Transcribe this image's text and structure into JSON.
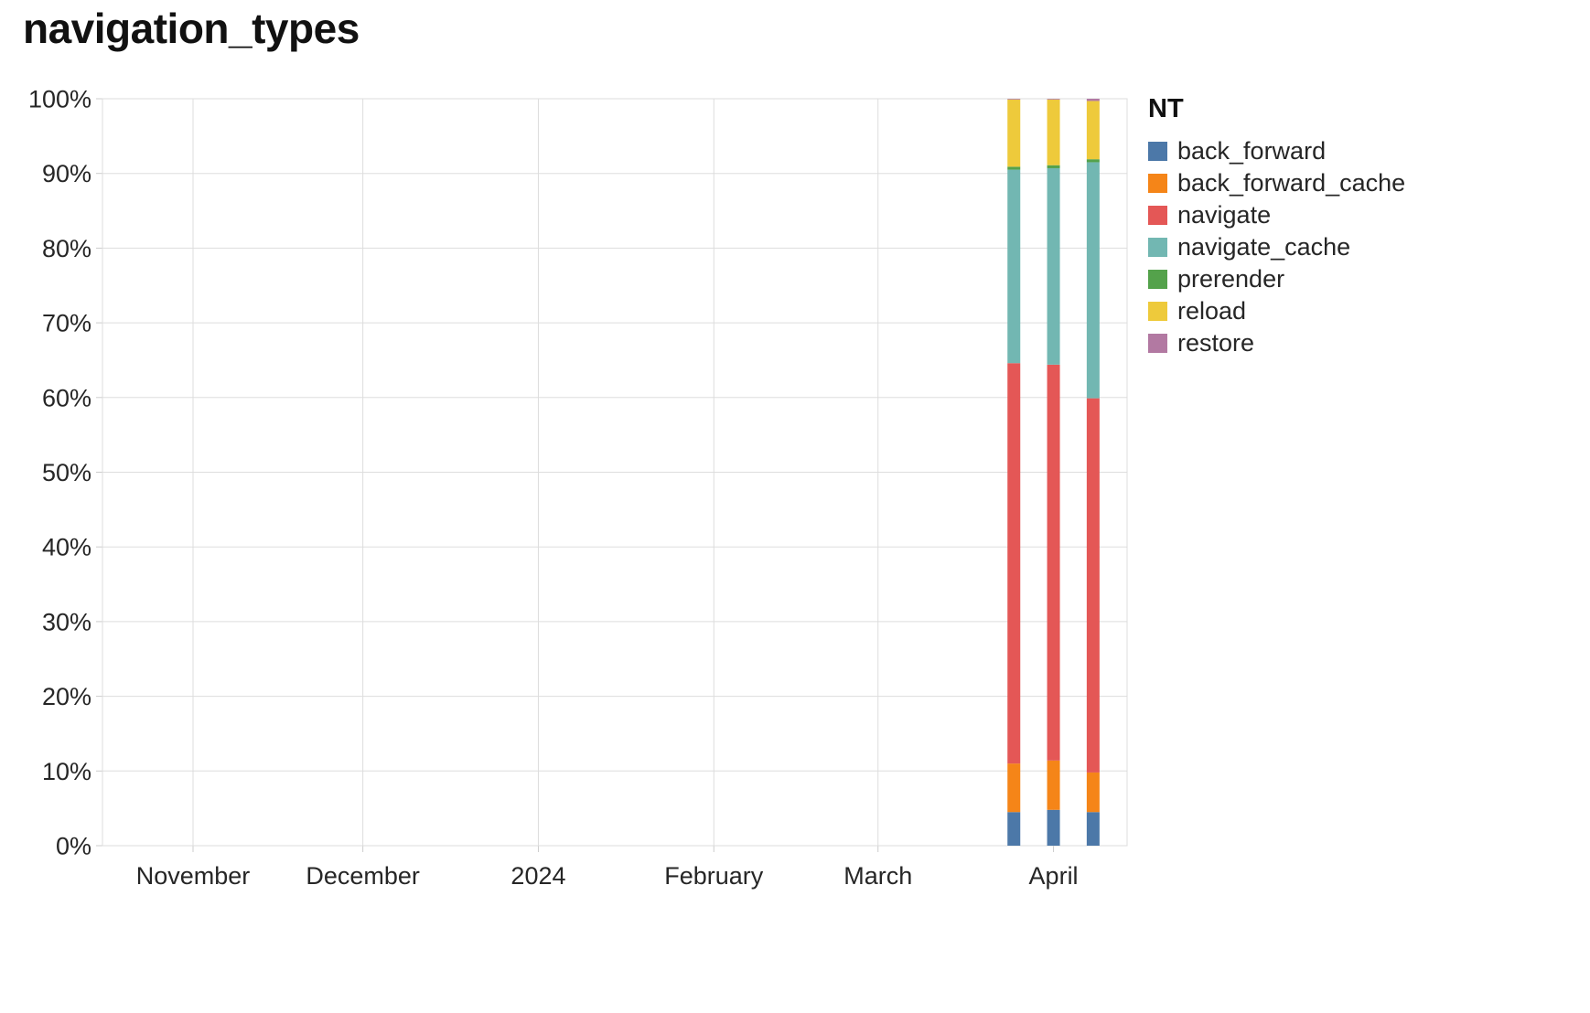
{
  "page": {
    "title": "navigation_types"
  },
  "chart_data": {
    "type": "bar",
    "stacked": true,
    "normalized": true,
    "title": "navigation_types",
    "legend": {
      "title": "NT",
      "position": "right"
    },
    "grid": true,
    "x_axis": {
      "domain": [
        "2023-10-16",
        "2024-04-14"
      ],
      "ticks": [
        {
          "date": "2023-11-01",
          "label": "November"
        },
        {
          "date": "2023-12-01",
          "label": "December"
        },
        {
          "date": "2024-01-01",
          "label": "2024"
        },
        {
          "date": "2024-02-01",
          "label": "February"
        },
        {
          "date": "2024-03-01",
          "label": "March"
        },
        {
          "date": "2024-04-01",
          "label": "April"
        }
      ]
    },
    "y_axis": {
      "lim": [
        0,
        100
      ],
      "ticks": [
        "0%",
        "10%",
        "20%",
        "30%",
        "40%",
        "50%",
        "60%",
        "70%",
        "80%",
        "90%",
        "100%"
      ]
    },
    "categories": [
      "2024-03-25",
      "2024-04-01",
      "2024-04-08"
    ],
    "series": [
      {
        "name": "back_forward",
        "color": "#4c78a8",
        "values": [
          4.5,
          4.8,
          4.5
        ]
      },
      {
        "name": "back_forward_cache",
        "color": "#f58518",
        "values": [
          6.5,
          6.6,
          5.3
        ]
      },
      {
        "name": "navigate",
        "color": "#e45756",
        "values": [
          53.6,
          53.0,
          50.1
        ]
      },
      {
        "name": "navigate_cache",
        "color": "#72b7b2",
        "values": [
          25.9,
          26.3,
          31.6
        ]
      },
      {
        "name": "prerender",
        "color": "#54a24b",
        "values": [
          0.4,
          0.4,
          0.4
        ]
      },
      {
        "name": "reload",
        "color": "#eeca3b",
        "values": [
          9.0,
          8.8,
          7.8
        ]
      },
      {
        "name": "restore",
        "color": "#b279a2",
        "values": [
          0.1,
          0.1,
          0.3
        ]
      }
    ]
  }
}
